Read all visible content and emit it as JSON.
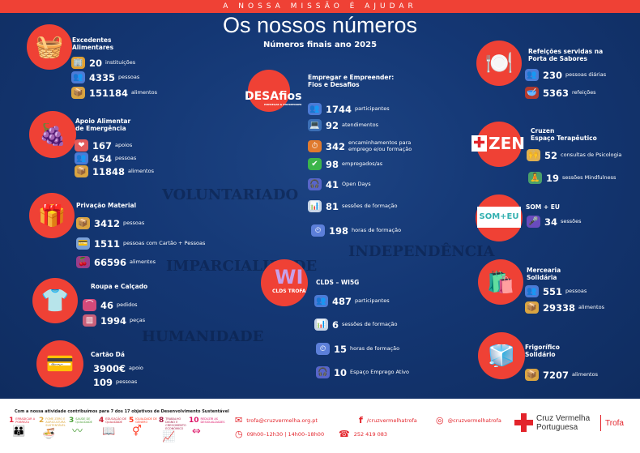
{
  "header": {
    "mission": "A NOSSA MISSÃO É AJUDAR",
    "title": "Os nossos números",
    "subtitle": "Números finais ano 2025"
  },
  "background_words": [
    "IMPARCIALIDADE",
    "HUMANIDADE",
    "VOLUNTARIADO",
    "INDEPENDÊNCIA"
  ],
  "colors": {
    "navy": "#143774",
    "red": "#ef4135",
    "white": "#ffffff"
  },
  "sections": [
    {
      "title": "Excedentes\nAlimentares",
      "icon": "food-basket-icon",
      "stats": [
        {
          "value": "20",
          "label": "instituições",
          "icon": "building-icon"
        },
        {
          "value": "4335",
          "label": "pessoas",
          "icon": "people-icon"
        },
        {
          "value": "151184",
          "label": "alimentos",
          "icon": "food-box-icon"
        }
      ]
    },
    {
      "title": "Apoio Alimentar\nde Emergência",
      "icon": "fruit-basket-icon",
      "stats": [
        {
          "value": "167",
          "label": "apoios",
          "icon": "heart-hand-icon"
        },
        {
          "value": "454",
          "label": "pessoas",
          "icon": "people-icon"
        },
        {
          "value": "11848",
          "label": "alimentos",
          "icon": "food-box-icon"
        }
      ]
    },
    {
      "title": "Privação Material",
      "icon": "card-gift-icon",
      "stats": [
        {
          "value": "3412",
          "label": "pessoas",
          "icon": "food-box-icon"
        },
        {
          "value": "1511",
          "label": "pessoas com Cartão + Pessoas",
          "icon": "card-icon"
        },
        {
          "value": "66596",
          "label": "alimentos",
          "icon": "fruit-icon"
        }
      ]
    },
    {
      "title": "Roupa e Calçado",
      "icon": "clothes-icon",
      "stats": [
        {
          "value": "46",
          "label": "pedidos",
          "icon": "hanger-icon"
        },
        {
          "value": "1994",
          "label": "peças",
          "icon": "clothes-rack-icon"
        }
      ]
    },
    {
      "title": "Cartão Dá",
      "icon": "credit-card-icon",
      "stats": [
        {
          "value": "3900€",
          "label": "apoio",
          "icon": ""
        },
        {
          "value": "109",
          "label": "pessoas",
          "icon": ""
        }
      ]
    },
    {
      "title": "Empregar e Empreender:\nFios e Desafios",
      "logo": "DESAfios",
      "logo_sub": "EMPREGAR & EMPREENDER",
      "stats": [
        {
          "value": "1744",
          "label": "participantes",
          "icon": "people-icon"
        },
        {
          "value": "92",
          "label": "atendimentos",
          "icon": "desk-icon"
        },
        {
          "value": "342",
          "label": "encaminhamentos para\nemprego e/ou formação",
          "icon": "clock-briefcase-icon"
        },
        {
          "value": "98",
          "label": "empregados/as",
          "icon": "check-icon"
        },
        {
          "value": "41",
          "label": "Open Days",
          "icon": "headset-icon"
        },
        {
          "value": "81",
          "label": "sessões de formação",
          "icon": "presentation-icon"
        },
        {
          "value": "198",
          "label": "horas de formação",
          "icon": "stopwatch-icon"
        }
      ]
    },
    {
      "title": "CLDS – WI5G",
      "logo": "WI",
      "logo_sub": "CLDS TROFA",
      "stats": [
        {
          "value": "487",
          "label": "participantes",
          "icon": "people-icon"
        },
        {
          "value": "6",
          "label": "sessões de formação",
          "icon": "presentation-icon"
        },
        {
          "value": "15",
          "label": "horas de formação",
          "icon": "stopwatch-icon"
        },
        {
          "value": "10",
          "label": "Espaço Emprego Ativo",
          "icon": "headset-icon"
        }
      ]
    },
    {
      "title": "Refeições servidas na\nPorta de Sabores",
      "icon": "plate-cutlery-icon",
      "stats": [
        {
          "value": "230",
          "label": "pessoas diárias",
          "icon": "people-icon"
        },
        {
          "value": "5363",
          "label": "refeições",
          "icon": "soup-bowl-icon"
        }
      ]
    },
    {
      "title": "Cruzen\nEspaço Terapêutico",
      "logo": "ZEN",
      "stats": [
        {
          "value": "52",
          "label": "consultas de Psicologia",
          "icon": "brain-hands-icon"
        },
        {
          "value": "19",
          "label": "sessões Mindfulness",
          "icon": "meditation-icon"
        }
      ]
    },
    {
      "title": "SOM + EU",
      "logo": "SOM+EU",
      "stats": [
        {
          "value": "34",
          "label": "sessões",
          "icon": "microphone-icon"
        }
      ]
    },
    {
      "title": "Mercearia\nSolidária",
      "icon": "grocery-bag-icon",
      "stats": [
        {
          "value": "551",
          "label": "pessoas",
          "icon": "people-icon"
        },
        {
          "value": "29338",
          "label": "alimentos",
          "icon": "food-box-icon"
        }
      ]
    },
    {
      "title": "Frigorífico\nSolidário",
      "icon": "fridge-icon",
      "stats": [
        {
          "value": "7207",
          "label": "alimentos",
          "icon": "food-box-icon"
        }
      ]
    }
  ],
  "footer": {
    "sdg_intro": "Com a nossa atividade contribuímos para 7 dos 17 objetivos de Desenvolvimento Sustentável",
    "sdgs": [
      {
        "n": "1",
        "t": "ERRADICAR A POBREZA",
        "color": "#e5243b"
      },
      {
        "n": "2",
        "t": "FOME ZERO E AGRICULTURA SUSTENTÁVEL",
        "color": "#dda63a"
      },
      {
        "n": "3",
        "t": "SAÚDE DE QUALIDADE",
        "color": "#4c9f38"
      },
      {
        "n": "4",
        "t": "EDUCAÇÃO DE QUALIDADE",
        "color": "#c5192d"
      },
      {
        "n": "5",
        "t": "IGUALDADE DE GÉNERO",
        "color": "#ff3a21"
      },
      {
        "n": "8",
        "t": "TRABALHO DIGNO E CRESCIMENTO ECONÓMICO",
        "color": "#a21942"
      },
      {
        "n": "10",
        "t": "REDUZIR AS DESIGUALDADES",
        "color": "#dd1367"
      }
    ],
    "email": "trofa@cruzvermelha.org.pt",
    "hours": "09h00–12h30 | 14h00–18h00",
    "phone": "252 419 083",
    "facebook": "/cruzvermelhatrofa",
    "instagram": "@cruzvermelhatrofa",
    "org_line1": "Cruz Vermelha",
    "org_line2": "Portuguesa",
    "branch": "Trofa"
  }
}
